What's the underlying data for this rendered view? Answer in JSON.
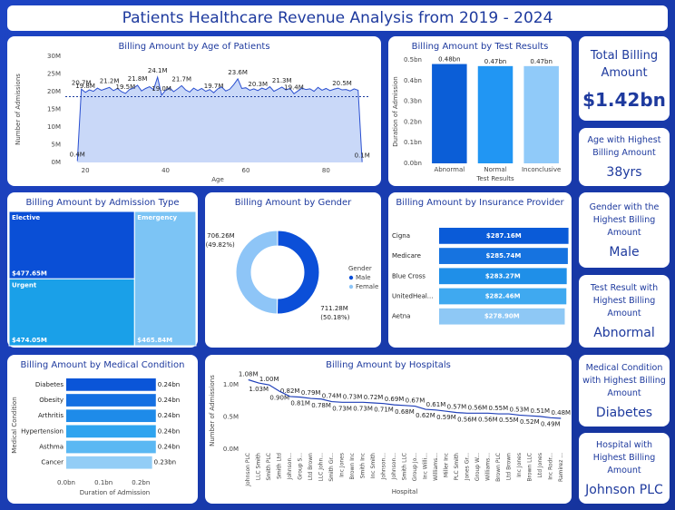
{
  "title": "Patients Healthcare Revenue Analysis from 2019 - 2024",
  "cards": [
    {
      "title": "Total Billing Amount",
      "value": "$1.42bn"
    },
    {
      "title": "Age with Highest Billing Amount",
      "value": "38yrs"
    },
    {
      "title": "Gender with the Highest Billing Amount",
      "value": "Male"
    },
    {
      "title": "Test Result with Highest Billing Amount",
      "value": "Abnormal"
    },
    {
      "title": "Medical Condition with Highest Billing Amount",
      "value": "Diabetes"
    },
    {
      "title": "Hospital with Highest Billing Amount",
      "value": "Johnson PLC"
    }
  ],
  "chart_data": [
    {
      "type": "area",
      "title": "Billing Amount by Age of Patients",
      "xlabel": "Age",
      "ylabel": "Number of Admissions",
      "color": "#2a4fd0",
      "fill": "#c9d8f8",
      "grid": false,
      "x": [
        18,
        19,
        20,
        21,
        22,
        23,
        24,
        25,
        26,
        27,
        28,
        29,
        30,
        31,
        32,
        33,
        34,
        35,
        36,
        37,
        38,
        39,
        40,
        41,
        42,
        43,
        44,
        45,
        46,
        47,
        48,
        49,
        50,
        51,
        52,
        53,
        54,
        55,
        56,
        57,
        58,
        59,
        60,
        61,
        62,
        63,
        64,
        65,
        66,
        67,
        68,
        69,
        70,
        71,
        72,
        73,
        74,
        75,
        76,
        77,
        78,
        79,
        80,
        81,
        82,
        83,
        84,
        85,
        86,
        87,
        88,
        89
      ],
      "values": [
        0.4,
        20.7,
        19.8,
        20.5,
        20.1,
        21.0,
        20.4,
        20.8,
        21.2,
        20.3,
        20.9,
        20.0,
        19.5,
        20.6,
        21.0,
        21.8,
        20.2,
        20.9,
        21.4,
        20.6,
        24.1,
        19.0,
        20.4,
        21.1,
        20.0,
        20.8,
        21.7,
        20.5,
        19.9,
        21.0,
        20.3,
        20.9,
        20.1,
        20.6,
        19.7,
        20.8,
        21.3,
        20.2,
        20.7,
        22.0,
        23.6,
        20.9,
        21.1,
        20.4,
        20.8,
        20.3,
        21.0,
        20.6,
        21.4,
        20.1,
        20.7,
        21.3,
        20.5,
        20.9,
        19.4,
        20.2,
        21.0,
        20.6,
        20.8,
        20.1,
        21.2,
        20.4,
        20.9,
        20.3,
        20.7,
        21.0,
        20.5,
        20.6,
        20.2,
        20.8,
        20.4,
        0.1
      ],
      "value_labels": [
        "0.4M",
        "20.7M",
        "19.8M",
        null,
        null,
        null,
        null,
        null,
        "21.2M",
        null,
        null,
        null,
        "19.5M",
        null,
        null,
        "21.8M",
        null,
        null,
        null,
        null,
        "24.1M",
        "19.0M",
        null,
        null,
        null,
        null,
        "21.7M",
        null,
        null,
        null,
        null,
        null,
        null,
        null,
        "19.7M",
        null,
        null,
        null,
        null,
        null,
        "23.6M",
        null,
        null,
        null,
        null,
        "20.3M",
        null,
        null,
        null,
        null,
        null,
        "21.3M",
        null,
        null,
        "19.4M",
        null,
        null,
        null,
        null,
        null,
        null,
        null,
        null,
        null,
        null,
        null,
        "20.5M",
        null,
        null,
        null,
        null,
        "0.1M"
      ],
      "average_line": 18.6,
      "xlim": [
        15,
        91
      ],
      "xticks": [
        20,
        40,
        60,
        80
      ],
      "ylim": [
        0,
        30
      ],
      "yticks": [
        {
          "value": 0,
          "label": "0M"
        },
        {
          "value": 5,
          "label": "5M"
        },
        {
          "value": 10,
          "label": "10M"
        },
        {
          "value": 15,
          "label": "15M"
        },
        {
          "value": 20,
          "label": "20M"
        },
        {
          "value": 25,
          "label": "25M"
        },
        {
          "value": 30,
          "label": "30M"
        }
      ]
    },
    {
      "type": "bar",
      "title": "Billing Amount by Test Results",
      "xlabel": "Test Results",
      "ylabel": "Duration of Admission",
      "categories": [
        "Abnormal",
        "Normal",
        "Inconclusive"
      ],
      "values": [
        0.48,
        0.47,
        0.47
      ],
      "value_labels": [
        "0.48bn",
        "0.47bn",
        "0.47bn"
      ],
      "colors": [
        "#0b5ed7",
        "#2196f3",
        "#90caf9"
      ],
      "ylim": [
        0,
        0.5
      ],
      "yticks": [
        {
          "value": 0,
          "label": "0.0bn"
        },
        {
          "value": 0.1,
          "label": "0.1bn"
        },
        {
          "value": 0.2,
          "label": "0.2bn"
        },
        {
          "value": 0.3,
          "label": "0.3bn"
        },
        {
          "value": 0.4,
          "label": "0.4bn"
        },
        {
          "value": 0.5,
          "label": "0.5bn"
        }
      ]
    },
    {
      "type": "treemap",
      "title": "Billing Amount by Admission Type",
      "categories": [
        "Elective",
        "Urgent",
        "Emergency"
      ],
      "values": [
        477.65,
        474.05,
        465.84
      ],
      "value_labels": [
        "$477.65M",
        "$474.05M",
        "$465.84M"
      ],
      "colors": [
        "#0a4fd6",
        "#1aa0e8",
        "#7cc4f5"
      ]
    },
    {
      "type": "donut",
      "title": "Billing Amount by Gender",
      "legend_title": "Gender",
      "categories": [
        "Male",
        "Female"
      ],
      "values": [
        711.28,
        706.26
      ],
      "value_labels": [
        "711.28M",
        "706.26M"
      ],
      "percent_labels": [
        "(50.18%)",
        "(49.82%)"
      ],
      "colors": [
        "#0b4fd8",
        "#8ec5f7"
      ]
    },
    {
      "type": "hbar",
      "title": "Billing Amount by Insurance Provider",
      "data_label_position": "inside",
      "categories": [
        "Cigna",
        "Medicare",
        "Blue Cross",
        "UnitedHeal...",
        "Aetna"
      ],
      "values": [
        287.16,
        285.74,
        283.27,
        282.46,
        278.9
      ],
      "value_labels": [
        "$287.16M",
        "$285.74M",
        "$283.27M",
        "$282.46M",
        "$278.90M"
      ],
      "colors": [
        "#0a5bd8",
        "#1673e0",
        "#1f8fe8",
        "#3fa9f0",
        "#8ec8f5"
      ],
      "xlim": [
        0,
        290
      ]
    },
    {
      "type": "hbar",
      "title": "Billing Amount by Medical Condition",
      "data_label_position": "outside_end",
      "xlabel": "Duration of Admission",
      "ylabel": "Medical Condition",
      "categories": [
        "Diabetes",
        "Obesity",
        "Arthritis",
        "Hypertension",
        "Asthma",
        "Cancer"
      ],
      "values": [
        0.24,
        0.24,
        0.24,
        0.24,
        0.24,
        0.23
      ],
      "value_labels": [
        "0.24bn",
        "0.24bn",
        "0.24bn",
        "0.24bn",
        "0.24bn",
        "0.23bn"
      ],
      "colors": [
        "#0a55d8",
        "#1570e2",
        "#1e8be9",
        "#2ea4ef",
        "#5ab8f3",
        "#92cdf6"
      ],
      "xlim": [
        0,
        0.26
      ],
      "xticks": [
        {
          "value": 0,
          "label": "0.0bn"
        },
        {
          "value": 0.1,
          "label": "0.1bn"
        },
        {
          "value": 0.2,
          "label": "0.2bn"
        }
      ]
    },
    {
      "type": "line",
      "title": "Billing Amount by Hospitals",
      "xlabel": "Hospital",
      "ylabel": "Number of Admissions",
      "color": "#1f3fb8",
      "categories": [
        "Johnson PLC",
        "LLC Smith",
        "Smith PLC",
        "Smith Ltd",
        "Johnson...",
        "Group S...",
        "Ltd Brown",
        "LLC John...",
        "Smith Gr...",
        "Inc Jones",
        "Brown Inc",
        "Smith Inc",
        "Inc Smith",
        "Johnson...",
        "Johnson...",
        "Smith LLC",
        "Group Jo...",
        "Inc Willi...",
        "Williams...",
        "Miller Inc",
        "PLC Smith",
        "Jones Gr...",
        "Group W...",
        "Williams...",
        "Brown PLC",
        "Ltd Brown",
        "Inc Jones",
        "Brown LLC",
        "Ltd Jones",
        "Inc Rodr...",
        "Ramirez ..."
      ],
      "values": [
        1.08,
        1.03,
        1.0,
        0.9,
        0.82,
        0.81,
        0.79,
        0.78,
        0.74,
        0.73,
        0.73,
        0.73,
        0.72,
        0.71,
        0.69,
        0.68,
        0.67,
        0.62,
        0.61,
        0.59,
        0.57,
        0.56,
        0.56,
        0.56,
        0.55,
        0.55,
        0.53,
        0.52,
        0.51,
        0.49,
        0.48
      ],
      "value_labels": [
        "1.08M",
        "1.03M",
        "1.00M",
        "0.90M",
        "0.82M",
        "0.81M",
        "0.79M",
        "0.78M",
        "0.74M",
        "0.73M",
        "0.73M",
        "0.73M",
        "0.72M",
        "0.71M",
        "0.69M",
        "0.68M",
        "0.67M",
        "0.62M",
        "0.61M",
        "0.59M",
        "0.57M",
        "0.56M",
        "0.56M",
        "0.56M",
        "0.55M",
        "0.55M",
        "0.53M",
        "0.52M",
        "0.51M",
        "0.49M",
        "0.48M"
      ],
      "ylim": [
        0,
        1.2
      ],
      "yticks": [
        {
          "value": 0,
          "label": "0.0M"
        },
        {
          "value": 0.5,
          "label": "0.5M"
        },
        {
          "value": 1,
          "label": "1.0M"
        }
      ]
    }
  ]
}
